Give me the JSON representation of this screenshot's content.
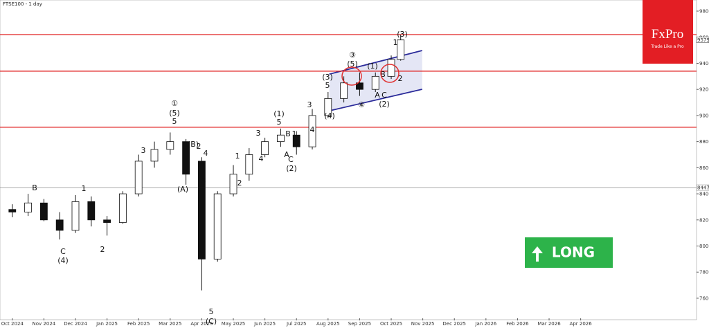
{
  "chart_data": {
    "type": "candlestick",
    "title": "FTSE100 - 1 day",
    "xlim": [
      -0.39,
      21.67
    ],
    "ylim": [
      7446,
      9885
    ],
    "xticks": [
      {
        "value": 0,
        "label": "Oct 2024"
      },
      {
        "value": 1,
        "label": "Nov 2024"
      },
      {
        "value": 2,
        "label": "Dec 2024"
      },
      {
        "value": 3,
        "label": "Jan 2025"
      },
      {
        "value": 4,
        "label": "Feb 2025"
      },
      {
        "value": 5,
        "label": "Mar 2025"
      },
      {
        "value": 6,
        "label": "Apr 2025"
      },
      {
        "value": 7,
        "label": "May 2025"
      },
      {
        "value": 8,
        "label": "Jun 2025"
      },
      {
        "value": 9,
        "label": "Jul 2025"
      },
      {
        "value": 10,
        "label": "Aug 2025"
      },
      {
        "value": 11,
        "label": "Sep 2025"
      },
      {
        "value": 12,
        "label": "Oct 2025"
      },
      {
        "value": 13,
        "label": "Nov 2025"
      },
      {
        "value": 14,
        "label": "Dec 2025"
      },
      {
        "value": 15,
        "label": "Jan 2026"
      },
      {
        "value": 16,
        "label": "Feb 2026"
      },
      {
        "value": 17,
        "label": "Mar 2026"
      },
      {
        "value": 18,
        "label": "Apr 2026"
      }
    ],
    "yticks": [
      {
        "value": 7600,
        "label": "7600.00"
      },
      {
        "value": 7800,
        "label": "7800.00"
      },
      {
        "value": 8000,
        "label": "8000.00"
      },
      {
        "value": 8200,
        "label": "8200.00"
      },
      {
        "value": 8400,
        "label": "8400.00"
      },
      {
        "value": 8600,
        "label": "8600.00"
      },
      {
        "value": 8800,
        "label": "8800.00"
      },
      {
        "value": 9000,
        "label": "9000.00"
      },
      {
        "value": 9200,
        "label": "9200.00"
      },
      {
        "value": 9400,
        "label": "9400.00"
      },
      {
        "value": 9600,
        "label": "9600.00"
      },
      {
        "value": 9800,
        "label": "9800.00"
      }
    ],
    "x": [
      0,
      0.5,
      1,
      1.5,
      2,
      2.5,
      3,
      3.5,
      4,
      4.5,
      5,
      5.5,
      6,
      6.5,
      7,
      7.5,
      8,
      8.5,
      9,
      9.5,
      10,
      10.5,
      11,
      11.5,
      12,
      12.3
    ],
    "open": [
      8280,
      8260,
      8330,
      8200,
      8120,
      8340,
      8200,
      8180,
      8400,
      8650,
      8740,
      8800,
      8650,
      7900,
      8400,
      8550,
      8700,
      8800,
      8850,
      8760,
      9000,
      9130,
      9250,
      9200,
      9300,
      9430
    ],
    "high": [
      8320,
      8400,
      8360,
      8260,
      8390,
      8380,
      8230,
      8420,
      8700,
      8800,
      8870,
      8820,
      8680,
      8420,
      8620,
      8750,
      8830,
      8900,
      8880,
      9050,
      9180,
      9300,
      9330,
      9330,
      9460,
      9620
    ],
    "low": [
      8220,
      8230,
      8190,
      8050,
      8100,
      8150,
      8080,
      8170,
      8380,
      8600,
      8700,
      8470,
      7660,
      7880,
      8380,
      8500,
      8680,
      8760,
      8700,
      8740,
      8980,
      9100,
      9150,
      9180,
      9280,
      9420
    ],
    "close": [
      8260,
      8330,
      8200,
      8120,
      8340,
      8200,
      8180,
      8400,
      8650,
      8740,
      8800,
      8550,
      7900,
      8400,
      8550,
      8700,
      8800,
      8850,
      8760,
      9000,
      9130,
      9250,
      9200,
      9300,
      9430,
      9579
    ],
    "levels": [
      9620,
      9340,
      8910
    ],
    "price_line": {
      "value": 8447.8,
      "label": "8447.80"
    },
    "last_price": {
      "value": 9579.02,
      "label": "9579.02"
    },
    "channel": {
      "x": [
        10.04,
        12.98
      ],
      "upper": [
        9317,
        9498
      ],
      "lower": [
        9036,
        9201
      ]
    },
    "annotations": [
      "B",
      "C",
      "(4)",
      "1",
      "2",
      "①",
      "(5)",
      "5",
      "(B)",
      "2",
      "4",
      "3",
      "(A)",
      "3",
      "5",
      "(C)",
      "1",
      "2",
      "3",
      "4",
      "(1)",
      "5",
      "B",
      "A",
      "C",
      "(2)",
      "1",
      "3",
      "4",
      "(4)",
      "5",
      "(3)",
      "③",
      "(5)",
      "(1)",
      "④",
      "(2)",
      "B",
      "A",
      "C",
      "2",
      "1",
      "(3)"
    ],
    "logo": {
      "name": "FxPro",
      "tagline": "Trade Like a Pro"
    },
    "signal": "LONG"
  }
}
